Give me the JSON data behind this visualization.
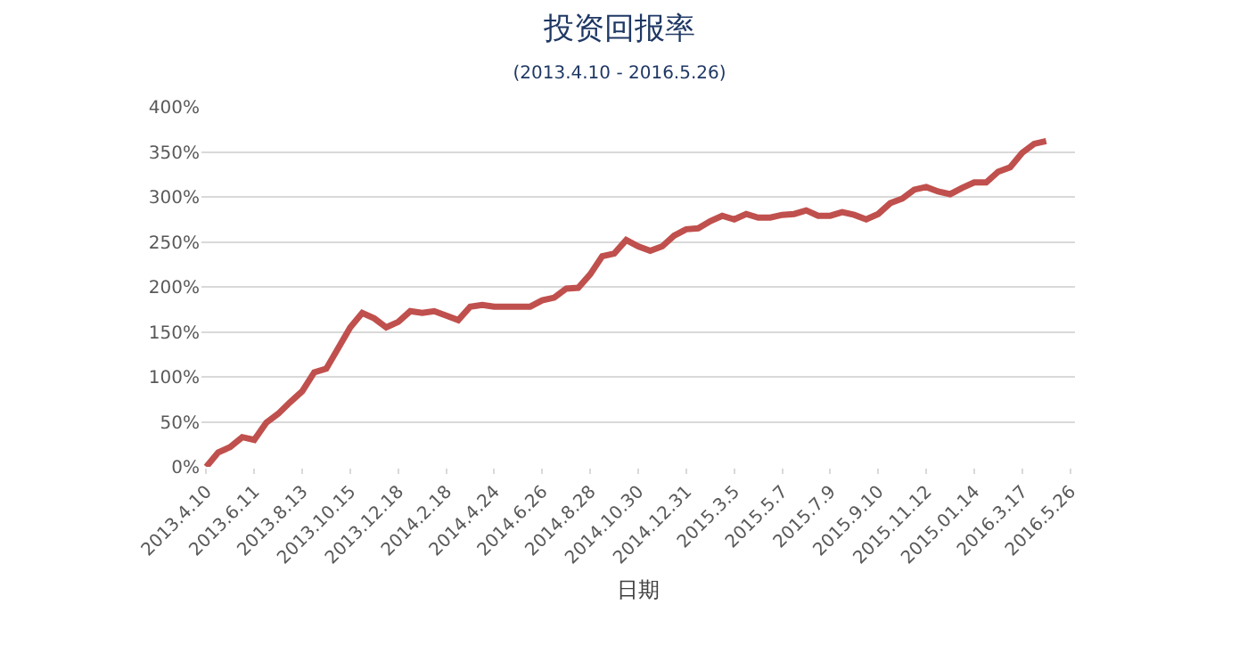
{
  "chart_data": {
    "type": "line",
    "title": "投资回报率",
    "subtitle": "(2013.4.10 - 2016.5.26)",
    "xlabel": "日期",
    "categories": [
      "2013.4.10",
      null,
      null,
      null,
      "2013.6.11",
      null,
      null,
      null,
      "2013.8.13",
      null,
      null,
      null,
      "2013.10.15",
      null,
      null,
      null,
      "2013.12.18",
      null,
      null,
      null,
      "2014.2.18",
      null,
      null,
      null,
      "2014.4.24",
      null,
      null,
      null,
      "2014.6.26",
      null,
      null,
      null,
      "2014.8.28",
      null,
      null,
      null,
      "2014.10.30",
      null,
      null,
      null,
      "2014.12.31",
      null,
      null,
      null,
      "2015.3.5",
      null,
      null,
      null,
      "2015.5.7",
      null,
      null,
      null,
      "2015.7.9",
      null,
      null,
      null,
      "2015.9.10",
      null,
      null,
      null,
      "2015.11.12",
      null,
      null,
      null,
      "2015.01.14",
      null,
      null,
      null,
      "2016.3.17",
      null,
      null,
      null,
      "2016.5.26"
    ],
    "series": [
      {
        "color": "#c0504d",
        "values": [
          0,
          16,
          22,
          33,
          30,
          49,
          59,
          72,
          84,
          105,
          109,
          132,
          155,
          171,
          165,
          155,
          161,
          173,
          171,
          173,
          168,
          163,
          178,
          180,
          178,
          178,
          178,
          178,
          185,
          188,
          198,
          199,
          214,
          234,
          237,
          252,
          245,
          240,
          245,
          257,
          264,
          265,
          273,
          279,
          275,
          281,
          277,
          277,
          280,
          281,
          285,
          279,
          279,
          283,
          280,
          275,
          281,
          293,
          298,
          308,
          311,
          306,
          303,
          310,
          316,
          316,
          328,
          333,
          349,
          359,
          362,
          null,
          null
        ]
      }
    ],
    "ylim": [
      0,
      400
    ],
    "yticks": [
      {
        "value": 0,
        "label": "0%"
      },
      {
        "value": 50,
        "label": "50%"
      },
      {
        "value": 100,
        "label": "100%"
      },
      {
        "value": 150,
        "label": "150%"
      },
      {
        "value": 200,
        "label": "200%"
      },
      {
        "value": 250,
        "label": "250%"
      },
      {
        "value": 300,
        "label": "300%"
      },
      {
        "value": 350,
        "label": "350%"
      },
      {
        "value": 400,
        "label": "400%"
      }
    ],
    "grid": "y",
    "marker": "none",
    "line_style": "solid"
  }
}
